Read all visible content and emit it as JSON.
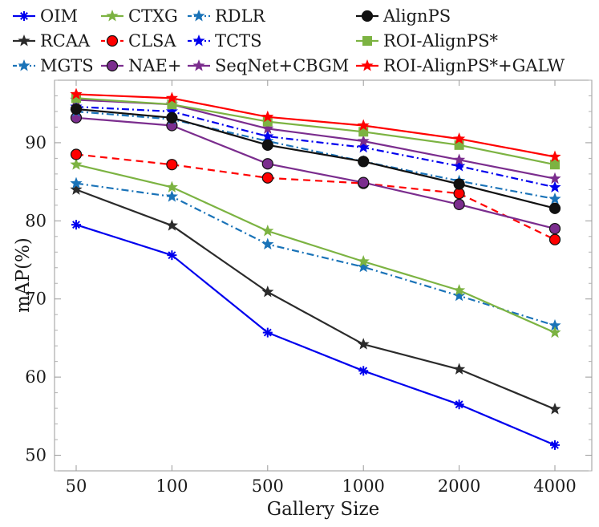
{
  "chart_data": {
    "type": "line",
    "title": "",
    "xlabel": "Gallery Size",
    "ylabel": "mAP(%)",
    "categories": [
      "50",
      "100",
      "500",
      "1000",
      "2000",
      "4000"
    ],
    "ylim": [
      48,
      98
    ],
    "yticks": [
      50,
      60,
      70,
      80,
      90
    ],
    "grid": false,
    "legend_position": "top",
    "series": [
      {
        "name": "OIM",
        "color": "#0000ee",
        "marker": "asterisk",
        "dash": "solid",
        "values": [
          79.5,
          75.6,
          65.7,
          60.8,
          56.5,
          51.3
        ]
      },
      {
        "name": "RCAA",
        "color": "#2b2b2b",
        "marker": "star",
        "dash": "solid",
        "values": [
          84.0,
          79.4,
          70.9,
          64.2,
          61.0,
          55.9
        ]
      },
      {
        "name": "MGTS",
        "color": "#1a73b8",
        "marker": "star",
        "dash": "dashdot",
        "values": [
          84.8,
          83.1,
          77.0,
          74.1,
          70.4,
          66.6
        ]
      },
      {
        "name": "CTXG",
        "color": "#7cb342",
        "marker": "star",
        "dash": "solid",
        "values": [
          87.2,
          84.3,
          78.7,
          74.8,
          71.1,
          65.7
        ]
      },
      {
        "name": "CLSA",
        "color": "#ff0000",
        "marker": "circle",
        "dash": "dashed",
        "values": [
          88.5,
          87.2,
          85.5,
          84.8,
          83.5,
          77.6
        ]
      },
      {
        "name": "NAE+",
        "color": "#7b2d8e",
        "marker": "circle",
        "dash": "solid",
        "values": [
          93.2,
          92.2,
          87.3,
          84.9,
          82.1,
          79.0
        ]
      },
      {
        "name": "RDLR",
        "color": "#1a73b8",
        "marker": "star",
        "dash": "dashdot",
        "values": [
          94.0,
          93.0,
          90.2,
          87.6,
          85.1,
          82.8
        ]
      },
      {
        "name": "TCTS",
        "color": "#0000ee",
        "marker": "star",
        "dash": "dashdot",
        "values": [
          94.6,
          94.0,
          90.8,
          89.4,
          87.0,
          84.3
        ]
      },
      {
        "name": "SeqNet+CBGM",
        "color": "#7b2d8e",
        "marker": "star",
        "dash": "solid",
        "values": [
          95.5,
          94.9,
          91.8,
          90.2,
          87.8,
          85.4
        ]
      },
      {
        "name": "AlignPS",
        "color": "#111111",
        "marker": "circle",
        "dash": "solid",
        "values": [
          94.3,
          93.2,
          89.7,
          87.6,
          84.7,
          81.6
        ]
      },
      {
        "name": "ROI-AlignPS*",
        "color": "#7cb342",
        "marker": "square",
        "dash": "solid",
        "values": [
          95.7,
          94.9,
          92.7,
          91.4,
          89.7,
          87.2
        ]
      },
      {
        "name": "ROI-AlignPS*+GALW",
        "color": "#ff0000",
        "marker": "star",
        "dash": "solid",
        "values": [
          96.2,
          95.7,
          93.3,
          92.2,
          90.5,
          88.2
        ]
      }
    ]
  }
}
